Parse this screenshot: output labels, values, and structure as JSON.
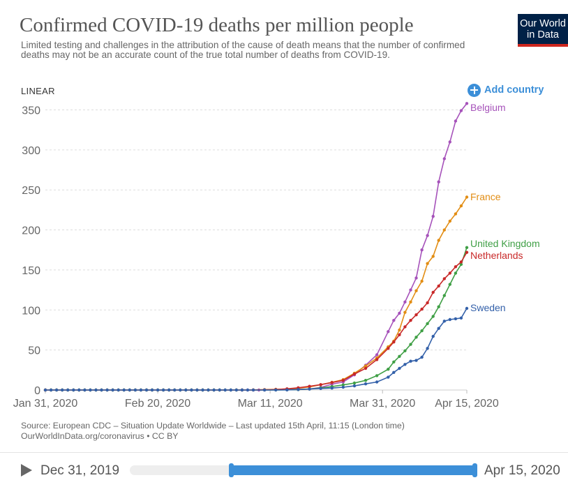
{
  "header": {
    "title": "Confirmed COVID-19 deaths per million people",
    "subtitle": "Limited testing and challenges in the attribution of the cause of death means that the number of confirmed deaths may not be an accurate count of the true total number of deaths from COVID-19.",
    "logo_line1": "Our World",
    "logo_line2": "in Data"
  },
  "controls": {
    "scale_label": "LINEAR",
    "add_country_label": "Add country"
  },
  "chart_data": {
    "type": "line",
    "x_start": "2020-01-31",
    "x_end": "2020-04-15",
    "ylim": [
      0,
      360
    ],
    "yticks": [
      0,
      50,
      100,
      150,
      200,
      250,
      300,
      350
    ],
    "xticks": [
      {
        "date": "2020-01-31",
        "label": "Jan 31, 2020"
      },
      {
        "date": "2020-02-20",
        "label": "Feb 20, 2020"
      },
      {
        "date": "2020-03-11",
        "label": "Mar 11, 2020"
      },
      {
        "date": "2020-03-31",
        "label": "Mar 31, 2020"
      },
      {
        "date": "2020-04-15",
        "label": "Apr 15, 2020"
      }
    ],
    "grid": true,
    "legend_placement": "right end of lines",
    "series": [
      {
        "name": "Belgium",
        "color": "#a652ba",
        "points": [
          [
            "2020-03-10",
            0
          ],
          [
            "2020-03-12",
            0.3
          ],
          [
            "2020-03-14",
            0.3
          ],
          [
            "2020-03-16",
            0.9
          ],
          [
            "2020-03-18",
            1.2
          ],
          [
            "2020-03-20",
            3.2
          ],
          [
            "2020-03-22",
            7.3
          ],
          [
            "2020-03-24",
            10
          ],
          [
            "2020-03-26",
            19
          ],
          [
            "2020-03-28",
            31
          ],
          [
            "2020-03-30",
            44
          ],
          [
            "2020-04-01",
            73
          ],
          [
            "2020-04-02",
            87
          ],
          [
            "2020-04-03",
            96
          ],
          [
            "2020-04-04",
            110
          ],
          [
            "2020-04-05",
            125
          ],
          [
            "2020-04-06",
            140
          ],
          [
            "2020-04-07",
            175
          ],
          [
            "2020-04-08",
            193
          ],
          [
            "2020-04-09",
            217
          ],
          [
            "2020-04-10",
            260
          ],
          [
            "2020-04-11",
            289
          ],
          [
            "2020-04-12",
            310
          ],
          [
            "2020-04-13",
            336
          ],
          [
            "2020-04-14",
            349
          ],
          [
            "2020-04-15",
            358
          ]
        ]
      },
      {
        "name": "France",
        "color": "#e28d14",
        "points": [
          [
            "2020-03-02",
            0.04
          ],
          [
            "2020-03-05",
            0.1
          ],
          [
            "2020-03-08",
            0.2
          ],
          [
            "2020-03-10",
            0.5
          ],
          [
            "2020-03-12",
            0.9
          ],
          [
            "2020-03-14",
            1.2
          ],
          [
            "2020-03-16",
            2.2
          ],
          [
            "2020-03-18",
            3.8
          ],
          [
            "2020-03-20",
            6.6
          ],
          [
            "2020-03-22",
            9.7
          ],
          [
            "2020-03-24",
            13
          ],
          [
            "2020-03-26",
            21
          ],
          [
            "2020-03-28",
            30
          ],
          [
            "2020-03-30",
            40
          ],
          [
            "2020-04-01",
            54
          ],
          [
            "2020-04-02",
            61
          ],
          [
            "2020-04-03",
            75
          ],
          [
            "2020-04-04",
            97
          ],
          [
            "2020-04-05",
            110
          ],
          [
            "2020-04-06",
            124
          ],
          [
            "2020-04-07",
            136
          ],
          [
            "2020-04-08",
            158
          ],
          [
            "2020-04-09",
            167
          ],
          [
            "2020-04-10",
            187
          ],
          [
            "2020-04-11",
            200
          ],
          [
            "2020-04-12",
            211
          ],
          [
            "2020-04-13",
            220
          ],
          [
            "2020-04-14",
            230
          ],
          [
            "2020-04-15",
            241
          ]
        ]
      },
      {
        "name": "United Kingdom",
        "color": "#3f9f45",
        "points": [
          [
            "2020-03-06",
            0.01
          ],
          [
            "2020-03-10",
            0.1
          ],
          [
            "2020-03-12",
            0.1
          ],
          [
            "2020-03-14",
            0.3
          ],
          [
            "2020-03-16",
            0.5
          ],
          [
            "2020-03-18",
            1.2
          ],
          [
            "2020-03-20",
            2.6
          ],
          [
            "2020-03-22",
            4.3
          ],
          [
            "2020-03-24",
            6.4
          ],
          [
            "2020-03-26",
            8.7
          ],
          [
            "2020-03-28",
            12
          ],
          [
            "2020-03-30",
            18
          ],
          [
            "2020-04-01",
            26
          ],
          [
            "2020-04-02",
            35
          ],
          [
            "2020-04-03",
            42
          ],
          [
            "2020-04-04",
            49
          ],
          [
            "2020-04-05",
            57
          ],
          [
            "2020-04-06",
            66
          ],
          [
            "2020-04-07",
            74
          ],
          [
            "2020-04-08",
            83
          ],
          [
            "2020-04-09",
            92
          ],
          [
            "2020-04-10",
            104
          ],
          [
            "2020-04-11",
            118
          ],
          [
            "2020-04-12",
            132
          ],
          [
            "2020-04-13",
            146
          ],
          [
            "2020-04-14",
            157
          ],
          [
            "2020-04-15",
            178
          ]
        ]
      },
      {
        "name": "Netherlands",
        "color": "#c82828",
        "points": [
          [
            "2020-01-31",
            0
          ],
          [
            "2020-03-06",
            0
          ],
          [
            "2020-03-08",
            0.1
          ],
          [
            "2020-03-10",
            0.3
          ],
          [
            "2020-03-12",
            0.6
          ],
          [
            "2020-03-14",
            1.5
          ],
          [
            "2020-03-16",
            2.8
          ],
          [
            "2020-03-18",
            4.6
          ],
          [
            "2020-03-20",
            6.7
          ],
          [
            "2020-03-22",
            9.3
          ],
          [
            "2020-03-24",
            12
          ],
          [
            "2020-03-26",
            20
          ],
          [
            "2020-03-28",
            27
          ],
          [
            "2020-03-30",
            38
          ],
          [
            "2020-04-01",
            52
          ],
          [
            "2020-04-02",
            60
          ],
          [
            "2020-04-03",
            69
          ],
          [
            "2020-04-04",
            79
          ],
          [
            "2020-04-05",
            87
          ],
          [
            "2020-04-06",
            94
          ],
          [
            "2020-04-07",
            101
          ],
          [
            "2020-04-08",
            109
          ],
          [
            "2020-04-09",
            122
          ],
          [
            "2020-04-10",
            130
          ],
          [
            "2020-04-11",
            139
          ],
          [
            "2020-04-12",
            146
          ],
          [
            "2020-04-13",
            154
          ],
          [
            "2020-04-14",
            160
          ],
          [
            "2020-04-15",
            172
          ]
        ]
      },
      {
        "name": "Sweden",
        "color": "#3360a9",
        "points": [
          [
            "2020-03-08",
            0
          ],
          [
            "2020-03-10",
            0
          ],
          [
            "2020-03-12",
            0.1
          ],
          [
            "2020-03-14",
            0.2
          ],
          [
            "2020-03-16",
            0.6
          ],
          [
            "2020-03-18",
            1.2
          ],
          [
            "2020-03-20",
            1.9
          ],
          [
            "2020-03-22",
            2.4
          ],
          [
            "2020-03-24",
            3.5
          ],
          [
            "2020-03-26",
            5.1
          ],
          [
            "2020-03-28",
            7.7
          ],
          [
            "2020-03-30",
            10
          ],
          [
            "2020-04-01",
            16
          ],
          [
            "2020-04-02",
            22
          ],
          [
            "2020-04-03",
            27
          ],
          [
            "2020-04-04",
            32
          ],
          [
            "2020-04-05",
            36
          ],
          [
            "2020-04-06",
            37
          ],
          [
            "2020-04-07",
            41
          ],
          [
            "2020-04-08",
            52
          ],
          [
            "2020-04-09",
            67
          ],
          [
            "2020-04-10",
            77
          ],
          [
            "2020-04-11",
            86
          ],
          [
            "2020-04-12",
            88
          ],
          [
            "2020-04-13",
            89
          ],
          [
            "2020-04-14",
            90
          ],
          [
            "2020-04-15",
            102
          ]
        ]
      }
    ]
  },
  "footer": {
    "source_line1": "Source: European CDC – Situation Update Worldwide – Last updated 15th April, 11:15 (London time)",
    "source_line2": "OurWorldInData.org/coronavirus • CC BY"
  },
  "timeline": {
    "start_label": "Dec 31, 2019",
    "end_label": "Apr 15, 2020",
    "start_date": "2019-12-31",
    "end_date": "2020-04-15",
    "selected_start": "2020-01-31",
    "selected_end": "2020-04-15"
  }
}
